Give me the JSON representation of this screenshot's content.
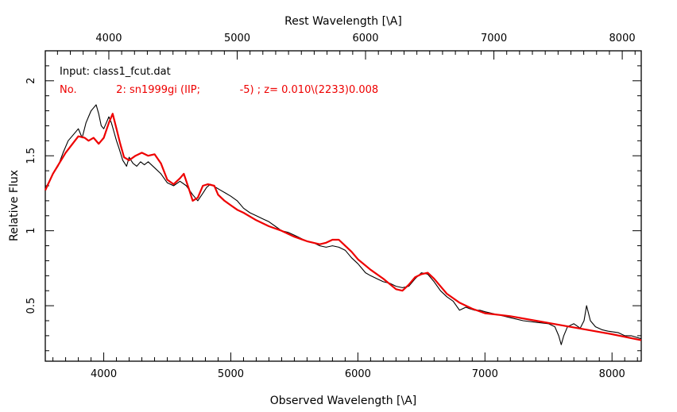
{
  "chart_data": {
    "type": "line",
    "xlabel": "Observed Wavelength [\\A]",
    "x2label": "Rest Wavelength [\\A]",
    "ylabel": "Relative Flux",
    "xlim": [
      3540,
      8230
    ],
    "x2lim": [
      3505,
      8148
    ],
    "ylim": [
      0.13,
      2.2
    ],
    "x_ticks": [
      4000,
      5000,
      6000,
      7000,
      8000
    ],
    "x2_ticks": [
      4000,
      5000,
      6000,
      7000,
      8000
    ],
    "y_ticks": [
      0.5,
      1,
      1.5,
      2
    ],
    "y_tick_labels": [
      "0.5",
      "1",
      "1.5",
      "2"
    ],
    "annotations": {
      "input": "Input: class1_fcut.dat",
      "match": "No.            2: sn1999gi (IIP;            -5) ; z= 0.010\\(2233)0.008"
    },
    "colors": {
      "observed": "#000000",
      "template": "#ee0000",
      "axes": "#000000"
    },
    "series": [
      {
        "style": "observed",
        "x": [
          3540,
          3600,
          3640,
          3680,
          3720,
          3760,
          3800,
          3830,
          3860,
          3880,
          3900,
          3920,
          3940,
          3960,
          3980,
          4000,
          4020,
          4040,
          4060,
          4080,
          4100,
          4120,
          4150,
          4180,
          4200,
          4230,
          4260,
          4290,
          4320,
          4350,
          4400,
          4450,
          4500,
          4550,
          4600,
          4650,
          4700,
          4740,
          4780,
          4810,
          4840,
          4880,
          4920,
          4960,
          5000,
          5050,
          5100,
          5150,
          5200,
          5250,
          5300,
          5350,
          5400,
          5450,
          5500,
          5550,
          5600,
          5650,
          5700,
          5750,
          5800,
          5850,
          5900,
          5950,
          6000,
          6030,
          6060,
          6100,
          6150,
          6200,
          6250,
          6300,
          6350,
          6400,
          6450,
          6500,
          6550,
          6600,
          6650,
          6700,
          6750,
          6800,
          6850,
          6880,
          6920,
          6960,
          7000,
          7100,
          7200,
          7300,
          7400,
          7500,
          7550,
          7580,
          7600,
          7620,
          7650,
          7700,
          7750,
          7780,
          7800,
          7830,
          7870,
          7920,
          7970,
          8050,
          8100,
          8150,
          8230
        ],
        "y": [
          1.28,
          1.38,
          1.43,
          1.52,
          1.6,
          1.64,
          1.68,
          1.62,
          1.72,
          1.76,
          1.8,
          1.82,
          1.84,
          1.78,
          1.7,
          1.68,
          1.72,
          1.76,
          1.72,
          1.66,
          1.6,
          1.55,
          1.47,
          1.43,
          1.49,
          1.45,
          1.43,
          1.46,
          1.44,
          1.46,
          1.42,
          1.38,
          1.32,
          1.3,
          1.33,
          1.3,
          1.24,
          1.2,
          1.25,
          1.29,
          1.31,
          1.29,
          1.27,
          1.25,
          1.23,
          1.2,
          1.15,
          1.12,
          1.1,
          1.08,
          1.06,
          1.03,
          1.0,
          0.99,
          0.97,
          0.95,
          0.93,
          0.92,
          0.9,
          0.89,
          0.9,
          0.89,
          0.87,
          0.82,
          0.78,
          0.75,
          0.72,
          0.7,
          0.68,
          0.66,
          0.65,
          0.63,
          0.62,
          0.63,
          0.68,
          0.72,
          0.71,
          0.66,
          0.6,
          0.56,
          0.53,
          0.47,
          0.49,
          0.48,
          0.47,
          0.47,
          0.46,
          0.44,
          0.42,
          0.4,
          0.39,
          0.38,
          0.36,
          0.3,
          0.24,
          0.3,
          0.36,
          0.38,
          0.35,
          0.4,
          0.5,
          0.4,
          0.36,
          0.34,
          0.33,
          0.32,
          0.3,
          0.3,
          0.28
        ]
      },
      {
        "style": "template",
        "x": [
          3540,
          3600,
          3700,
          3800,
          3850,
          3880,
          3920,
          3960,
          4000,
          4040,
          4070,
          4100,
          4130,
          4160,
          4200,
          4250,
          4300,
          4350,
          4400,
          4450,
          4500,
          4550,
          4600,
          4630,
          4670,
          4700,
          4740,
          4780,
          4820,
          4870,
          4900,
          4950,
          5000,
          5050,
          5100,
          5200,
          5300,
          5400,
          5500,
          5600,
          5700,
          5750,
          5800,
          5850,
          5900,
          5950,
          6000,
          6100,
          6200,
          6300,
          6350,
          6400,
          6450,
          6500,
          6550,
          6600,
          6650,
          6700,
          6800,
          6900,
          7000,
          7200,
          7400,
          7600,
          7800,
          8000,
          8230
        ],
        "y": [
          1.27,
          1.38,
          1.52,
          1.63,
          1.62,
          1.6,
          1.62,
          1.58,
          1.62,
          1.72,
          1.78,
          1.68,
          1.58,
          1.49,
          1.47,
          1.5,
          1.52,
          1.5,
          1.51,
          1.45,
          1.34,
          1.31,
          1.35,
          1.38,
          1.28,
          1.2,
          1.22,
          1.3,
          1.31,
          1.3,
          1.24,
          1.2,
          1.17,
          1.14,
          1.12,
          1.07,
          1.03,
          1.0,
          0.96,
          0.93,
          0.91,
          0.92,
          0.94,
          0.94,
          0.9,
          0.86,
          0.81,
          0.74,
          0.68,
          0.61,
          0.6,
          0.64,
          0.69,
          0.71,
          0.72,
          0.68,
          0.63,
          0.58,
          0.52,
          0.48,
          0.45,
          0.43,
          0.4,
          0.37,
          0.34,
          0.31,
          0.27
        ]
      }
    ]
  }
}
